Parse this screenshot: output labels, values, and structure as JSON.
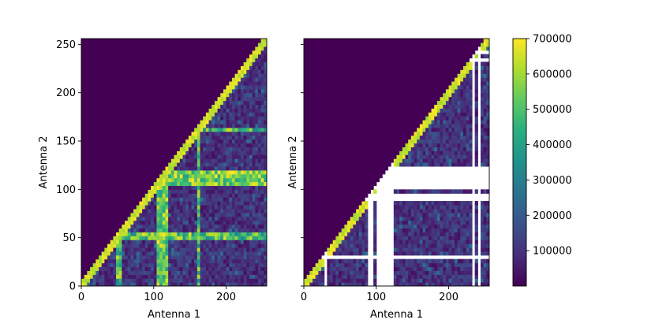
{
  "chart_data": {
    "type": "heatmap",
    "colormap": "viridis",
    "panels": [
      {
        "name": "left",
        "xlabel": "Antenna 1",
        "ylabel": "Antenna 2",
        "xlim": [
          0,
          256
        ],
        "ylim": [
          0,
          256
        ],
        "xticks": [
          0,
          100,
          200
        ],
        "xtick_labels": [
          "0",
          "100",
          "200"
        ],
        "yticks": [
          0,
          50,
          100,
          150,
          200,
          250
        ],
        "ytick_labels": [
          "0",
          "50",
          "100",
          "150",
          "200",
          "250"
        ],
        "masked_antennas": [],
        "bright_antenna_bands": [
          [
            105,
            118
          ]
        ],
        "highlights": [
          [
            50,
            54
          ],
          [
            160,
            164
          ]
        ]
      },
      {
        "name": "right",
        "xlabel": "Antenna 1",
        "ylabel": "Antenna 2",
        "xlim": [
          0,
          256
        ],
        "ylim": [
          0,
          256
        ],
        "xticks": [
          0,
          100,
          200
        ],
        "xtick_labels": [
          "0",
          "100",
          "200"
        ],
        "yticks": [
          0,
          50,
          100,
          150,
          200,
          250
        ],
        "ytick_labels": [
          "",
          "",
          "",
          "",
          "",
          ""
        ],
        "masked_antennas": [
          [
            88,
            90
          ],
          [
            93,
            95
          ],
          [
            102,
            124
          ],
          [
            30,
            31
          ],
          [
            160,
            161
          ],
          [
            232,
            234
          ],
          [
            242,
            244
          ]
        ],
        "bright_antenna_bands": [],
        "highlights": []
      }
    ],
    "colorbar": {
      "vmin": 0,
      "vmax": 700000,
      "ticks": [
        100000,
        200000,
        300000,
        400000,
        500000,
        600000,
        700000
      ],
      "tick_labels": [
        "100000",
        "200000",
        "300000",
        "400000",
        "500000",
        "600000",
        "700000"
      ]
    }
  }
}
